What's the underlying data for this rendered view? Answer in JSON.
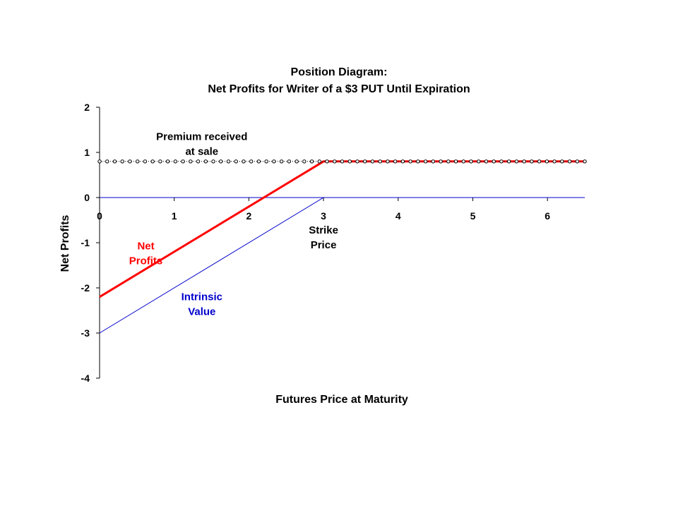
{
  "chart_data": {
    "type": "line",
    "title": "Position Diagram:",
    "subtitle": "Net Profits for Writer of a $3 PUT Until Expiration",
    "xlabel": "Futures Price at Maturity",
    "ylabel": "Net Profits",
    "xlim": [
      0,
      6.5
    ],
    "ylim": [
      -4,
      2
    ],
    "x_ticks": [
      "0",
      "1",
      "2",
      "3",
      "4",
      "5",
      "6"
    ],
    "y_ticks": [
      "2",
      "1",
      "0",
      "-1",
      "-2",
      "-3",
      "-4"
    ],
    "grid": false,
    "series": [
      {
        "name": "Net Profits",
        "color": "#ff0000",
        "style": "solid",
        "x": [
          0,
          3,
          6.5
        ],
        "y": [
          -2.2,
          0.8,
          0.8
        ]
      },
      {
        "name": "Intrinsic Value",
        "color": "#0000cc",
        "style": "solid",
        "x": [
          0,
          3,
          6.5
        ],
        "y": [
          -3,
          0,
          0
        ]
      },
      {
        "name": "Premium received at sale",
        "color": "#000000",
        "style": "dotted-markers",
        "x": [
          0,
          6.5
        ],
        "y": [
          0.8,
          0.8
        ]
      }
    ],
    "annotations": [
      {
        "id": "premium",
        "lines": [
          "Premium received",
          "at sale"
        ],
        "color": "#000000",
        "x": 1.37,
        "y": 1.27
      },
      {
        "id": "strike",
        "lines": [
          "Strike",
          "Price"
        ],
        "color": "#000000",
        "x": 3.0,
        "y": -0.8
      },
      {
        "id": "net",
        "lines": [
          "Net",
          "Profits"
        ],
        "color": "#ff0000",
        "x": 0.62,
        "y": -1.15
      },
      {
        "id": "intrinsic",
        "lines": [
          "Intrinsic",
          "Value"
        ],
        "color": "#0000cc",
        "x": 1.37,
        "y": -2.27
      }
    ]
  }
}
